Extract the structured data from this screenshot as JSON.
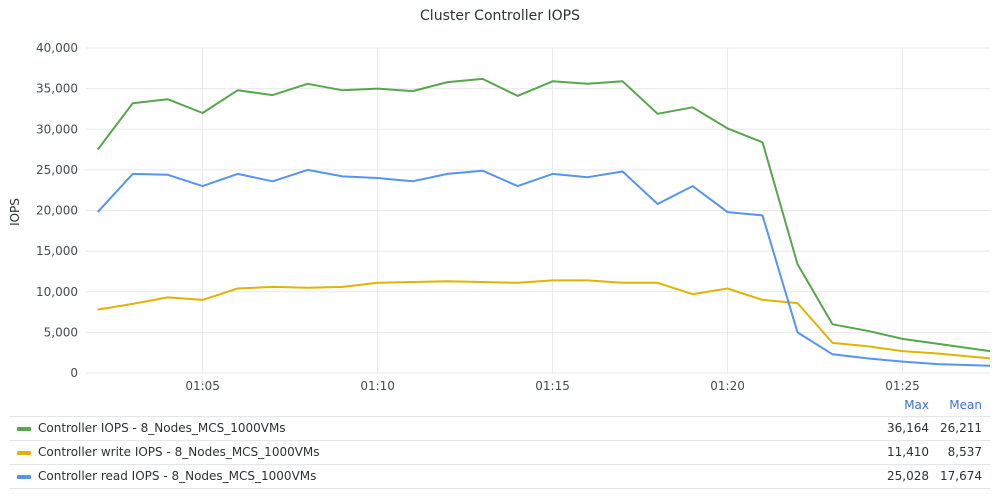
{
  "chart_data": {
    "type": "line",
    "title": "Cluster Controller IOPS",
    "ylabel": "IOPS",
    "xlabel": "",
    "ylim": [
      0,
      40000
    ],
    "yticks": [
      0,
      5000,
      10000,
      15000,
      20000,
      25000,
      30000,
      35000,
      40000
    ],
    "ytick_labels": [
      "0",
      "5,000",
      "10,000",
      "15,000",
      "20,000",
      "25,000",
      "30,000",
      "35,000",
      "40,000"
    ],
    "xlim": [
      "01:01:40",
      "01:27:30"
    ],
    "xticks": [
      "01:05",
      "01:10",
      "01:15",
      "01:20",
      "01:25"
    ],
    "x": [
      "01:02",
      "01:03",
      "01:04",
      "01:05",
      "01:06",
      "01:07",
      "01:08",
      "01:09",
      "01:10",
      "01:11",
      "01:12",
      "01:13",
      "01:14",
      "01:15",
      "01:16",
      "01:17",
      "01:18",
      "01:19",
      "01:20",
      "01:21",
      "01:22",
      "01:23",
      "01:24",
      "01:25",
      "01:26",
      "01:27:30"
    ],
    "grid": true,
    "legend_position": "bottom",
    "legend_columns": [
      "Max",
      "Mean"
    ],
    "series": [
      {
        "name": "Controller IOPS - 8_Nodes_MCS_1000VMs",
        "color": "#56a64b",
        "max": "36,164",
        "mean": "26,211",
        "values": [
          27500,
          33200,
          33700,
          32000,
          34800,
          34200,
          35600,
          34800,
          35000,
          34700,
          35800,
          36200,
          34100,
          35900,
          35600,
          35900,
          31900,
          32700,
          30100,
          28400,
          13400,
          6000,
          5200,
          4200,
          3600,
          2700
        ]
      },
      {
        "name": "Controller write IOPS - 8_Nodes_MCS_1000VMs",
        "color": "#e0b400",
        "max": "11,410",
        "mean": "8,537",
        "values": [
          7800,
          8500,
          9300,
          9000,
          10400,
          10600,
          10500,
          10600,
          11100,
          11200,
          11300,
          11200,
          11100,
          11400,
          11400,
          11100,
          11100,
          9700,
          10400,
          9000,
          8600,
          3700,
          3300,
          2700,
          2400,
          1800
        ]
      },
      {
        "name": "Controller read IOPS - 8_Nodes_MCS_1000VMs",
        "color": "#5794f2",
        "max": "25,028",
        "mean": "17,674",
        "values": [
          19800,
          24500,
          24400,
          23000,
          24500,
          23600,
          25000,
          24200,
          24000,
          23600,
          24500,
          24900,
          23000,
          24500,
          24100,
          24800,
          20800,
          23000,
          19800,
          19400,
          5000,
          2300,
          1800,
          1400,
          1100,
          900
        ]
      }
    ]
  }
}
